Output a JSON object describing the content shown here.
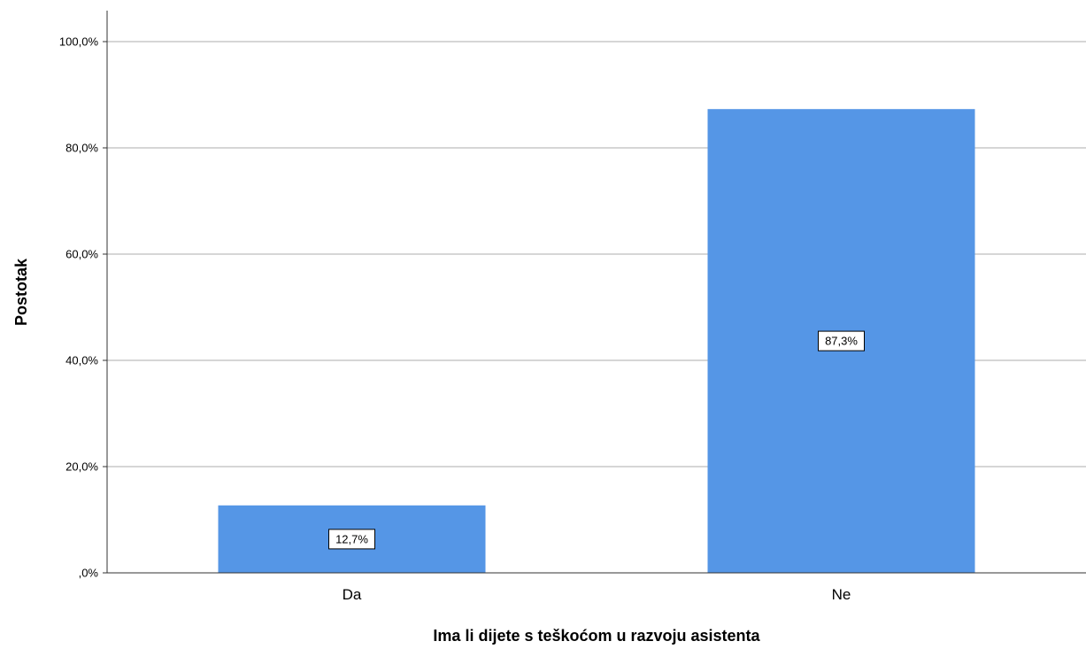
{
  "chart_data": {
    "type": "bar",
    "categories": [
      "Da",
      "Ne"
    ],
    "values": [
      12.7,
      87.3
    ],
    "value_labels": [
      "12,7%",
      "87,3%"
    ],
    "title": "",
    "xlabel": "Ima li dijete s teškoćom u razvoju asistenta",
    "ylabel": "Postotak",
    "ylim": [
      0,
      100
    ],
    "yticks": [
      0,
      20,
      40,
      60,
      80,
      100
    ],
    "ytick_labels": [
      ",0%",
      "20,0%",
      "40,0%",
      "60,0%",
      "80,0%",
      "100,0%"
    ],
    "grid": true,
    "legend": "none",
    "bar_color": "#5596E6",
    "grid_color": "#C8C8C8"
  }
}
